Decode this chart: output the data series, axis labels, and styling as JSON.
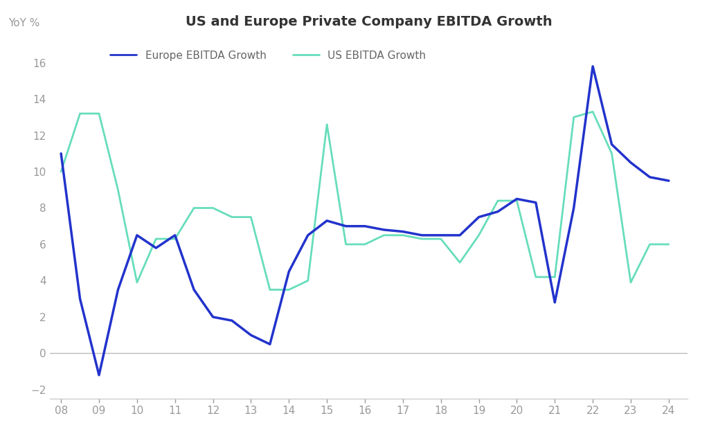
{
  "title": "US and Europe Private Company EBITDA Growth",
  "ylabel": "YoY %",
  "background_color": "#ffffff",
  "title_fontsize": 14,
  "label_fontsize": 11,
  "tick_fontsize": 11,
  "europe_color": "#2233cc",
  "us_color": "#66ddbb",
  "europe_label": "Europe EBITDA Growth",
  "us_label": "US EBITDA Growth",
  "europe_linewidth": 2.5,
  "us_linewidth": 2.0,
  "x_europe": [
    2008.0,
    2008.5,
    2009.0,
    2009.5,
    2010.0,
    2010.5,
    2011.0,
    2011.5,
    2012.0,
    2012.5,
    2013.0,
    2013.5,
    2014.0,
    2014.5,
    2015.0,
    2015.5,
    2016.0,
    2016.5,
    2017.0,
    2017.5,
    2018.0,
    2018.5,
    2019.0,
    2019.5,
    2020.0,
    2020.5,
    2021.0,
    2021.5,
    2022.0,
    2022.5,
    2023.0,
    2023.5,
    2024.0
  ],
  "europe_values": [
    11.0,
    3.0,
    -1.2,
    3.5,
    6.5,
    5.8,
    6.5,
    3.5,
    2.0,
    1.8,
    1.0,
    0.5,
    4.5,
    6.5,
    7.3,
    7.0,
    7.0,
    6.8,
    6.7,
    6.5,
    6.5,
    6.5,
    7.5,
    7.8,
    8.5,
    8.3,
    2.8,
    8.0,
    15.8,
    11.5,
    10.5,
    9.7,
    9.5
  ],
  "x_us": [
    2008.0,
    2008.5,
    2009.0,
    2009.5,
    2010.0,
    2010.5,
    2011.0,
    2011.5,
    2012.0,
    2012.5,
    2013.0,
    2013.5,
    2014.0,
    2014.5,
    2015.0,
    2015.5,
    2016.0,
    2016.5,
    2017.0,
    2017.5,
    2018.0,
    2018.5,
    2019.0,
    2019.5,
    2020.0,
    2020.5,
    2021.0,
    2021.5,
    2022.0,
    2022.5,
    2023.0,
    2023.5,
    2024.0
  ],
  "us_values": [
    10.0,
    13.2,
    13.2,
    9.0,
    3.9,
    6.3,
    6.3,
    8.0,
    8.0,
    7.5,
    7.5,
    3.5,
    3.5,
    4.0,
    12.6,
    6.0,
    6.0,
    6.5,
    6.5,
    6.3,
    6.3,
    5.0,
    6.5,
    8.4,
    8.4,
    4.2,
    4.2,
    13.0,
    13.3,
    11.0,
    3.9,
    6.0,
    6.0
  ],
  "ylim": [
    -2.5,
    17.5
  ],
  "yticks": [
    -2,
    0,
    2,
    4,
    6,
    8,
    10,
    12,
    14,
    16
  ],
  "xlim": [
    2007.7,
    2024.5
  ],
  "x_years": [
    2008,
    2009,
    2010,
    2011,
    2012,
    2013,
    2014,
    2015,
    2016,
    2017,
    2018,
    2019,
    2020,
    2021,
    2022,
    2023,
    2024
  ],
  "xtick_labels": [
    "08",
    "09",
    "10",
    "11",
    "12",
    "13",
    "14",
    "15",
    "16",
    "17",
    "18",
    "19",
    "20",
    "21",
    "22",
    "23",
    "24"
  ],
  "grid_color": "#cccccc",
  "axis_color": "#aaaaaa",
  "zero_line_color": "#bbbbbb"
}
